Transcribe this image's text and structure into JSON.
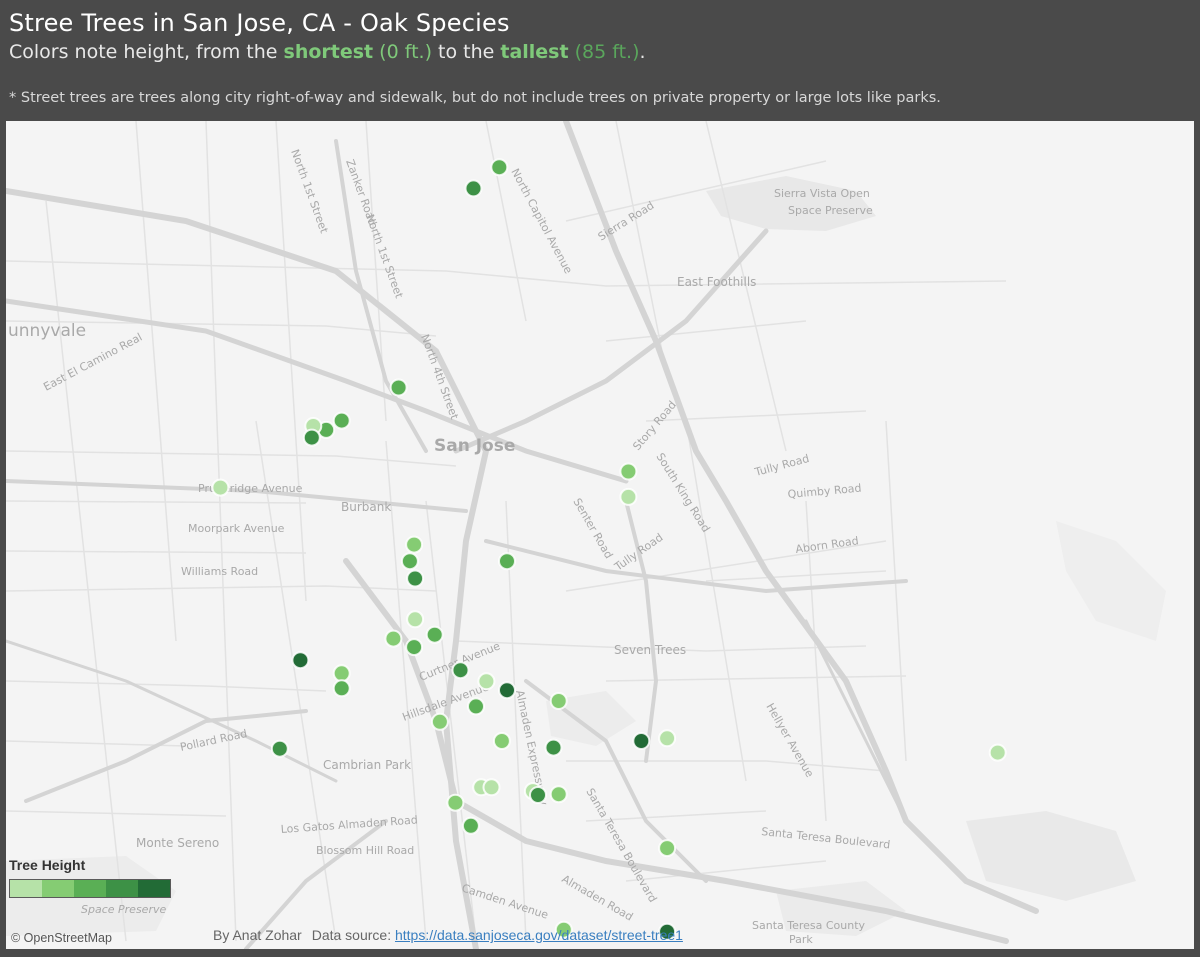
{
  "header": {
    "title": "Stree Trees in San Jose, CA - Oak Species",
    "subtitle": {
      "prefix": "Colors note height, from the ",
      "shortest_word": "shortest",
      "shortest_value": " (0 ft.)",
      "middle": " to the ",
      "tallest_word": "tallest",
      "tallest_value": " (85 ft.)",
      "suffix": "."
    },
    "footnote": "* Street trees are trees along city right-of-way and sidewalk, but do not include trees on private property or large lots like parks."
  },
  "map": {
    "colors": {
      "background": "#f4f4f4",
      "minor_road": "#e2e2e2",
      "major_road": "#d2d2d2",
      "park": "#e9e9e9"
    },
    "labels": {
      "sunnyvale": "unnyvale",
      "east_el_camino_real": "East El Camino Real",
      "san_jose": "San Jose",
      "burbank": "Burbank",
      "pruneridge": "Pruneridge Avenue",
      "moorpark": "Moorpark Avenue",
      "williams": "Williams Road",
      "pollard": "Pollard Road",
      "cambrian_park": "Cambrian Park",
      "monte_sereno": "Monte Sereno",
      "los_gatos_almaden": "Los Gatos Almaden Road",
      "blossom_hill": "Blossom Hill Road",
      "camden": "Camden Avenue",
      "almaden_road": "Almaden Road",
      "almaden_exp": "Almaden Expressway",
      "curtner": "Curtner Avenue",
      "hillsdale": "Hillsdale Avenue",
      "north_1st": "North 1st Street",
      "zanker": "Zanker Road",
      "north_1st_street_2": "North 1st Street",
      "north_4th": "North 4th Street",
      "north_capitol": "North Capitol Avenue",
      "sierra_road": "Sierra Road",
      "sierra_vista": "Sierra Vista Open",
      "space_preserve": "Space Preserve",
      "east_foothills": "East Foothills",
      "story_road": "Story Road",
      "south_king": "South King Road",
      "tully_road_e": "Tully Road",
      "tully_road_w": "Tully Road",
      "quimby": "Quimby Road",
      "aborn": "Aborn Road",
      "senter": "Senter Road",
      "seven_trees": "Seven Trees",
      "hellyer": "Hellyer Avenue",
      "santa_teresa_blvd_w": "Santa Teresa Boulevard",
      "santa_teresa_blvd_e": "Santa Teresa Boulevard",
      "santa_teresa_county": "Santa Teresa County",
      "park_word": "Park",
      "space_preserve_bottom": "Space Preserve"
    },
    "tree_points": [
      {
        "lon": -121.8845,
        "lat": 37.398,
        "height_class": 3
      },
      {
        "lon": -121.8895,
        "lat": 37.3925,
        "height_class": 4
      },
      {
        "lon": -121.904,
        "lat": 37.3408,
        "height_class": 3
      },
      {
        "lon": -121.915,
        "lat": 37.3322,
        "height_class": 3
      },
      {
        "lon": -121.918,
        "lat": 37.3298,
        "height_class": 3
      },
      {
        "lon": -121.9205,
        "lat": 37.3308,
        "height_class": 1
      },
      {
        "lon": -121.9208,
        "lat": 37.3278,
        "height_class": 4
      },
      {
        "lon": -121.9385,
        "lat": 37.3148,
        "height_class": 1
      },
      {
        "lon": -121.8595,
        "lat": 37.319,
        "height_class": 2
      },
      {
        "lon": -121.8595,
        "lat": 37.3124,
        "height_class": 1
      },
      {
        "lon": -121.901,
        "lat": 37.3,
        "height_class": 2
      },
      {
        "lon": -121.9018,
        "lat": 37.2957,
        "height_class": 3
      },
      {
        "lon": -121.9008,
        "lat": 37.2912,
        "height_class": 4
      },
      {
        "lon": -121.883,
        "lat": 37.2957,
        "height_class": 3
      },
      {
        "lon": -121.9008,
        "lat": 37.2806,
        "height_class": 1
      },
      {
        "lon": -121.897,
        "lat": 37.2766,
        "height_class": 3
      },
      {
        "lon": -121.905,
        "lat": 37.2756,
        "height_class": 2
      },
      {
        "lon": -121.901,
        "lat": 37.2734,
        "height_class": 3
      },
      {
        "lon": -121.923,
        "lat": 37.27,
        "height_class": 5
      },
      {
        "lon": -121.915,
        "lat": 37.2666,
        "height_class": 2
      },
      {
        "lon": -121.915,
        "lat": 37.2627,
        "height_class": 3
      },
      {
        "lon": -121.892,
        "lat": 37.2674,
        "height_class": 4
      },
      {
        "lon": -121.887,
        "lat": 37.2645,
        "height_class": 1
      },
      {
        "lon": -121.883,
        "lat": 37.2622,
        "height_class": 5
      },
      {
        "lon": -121.873,
        "lat": 37.2594,
        "height_class": 2
      },
      {
        "lon": -121.889,
        "lat": 37.258,
        "height_class": 3
      },
      {
        "lon": -121.896,
        "lat": 37.254,
        "height_class": 2
      },
      {
        "lon": -121.884,
        "lat": 37.249,
        "height_class": 2
      },
      {
        "lon": -121.874,
        "lat": 37.2473,
        "height_class": 4
      },
      {
        "lon": -121.927,
        "lat": 37.247,
        "height_class": 4
      },
      {
        "lon": -121.857,
        "lat": 37.249,
        "height_class": 5
      },
      {
        "lon": -121.852,
        "lat": 37.2497,
        "height_class": 1
      },
      {
        "lon": -121.788,
        "lat": 37.246,
        "height_class": 1
      },
      {
        "lon": -121.888,
        "lat": 37.237,
        "height_class": 1
      },
      {
        "lon": -121.886,
        "lat": 37.237,
        "height_class": 1
      },
      {
        "lon": -121.878,
        "lat": 37.236,
        "height_class": 1
      },
      {
        "lon": -121.877,
        "lat": 37.235,
        "height_class": 4
      },
      {
        "lon": -121.873,
        "lat": 37.2352,
        "height_class": 2
      },
      {
        "lon": -121.893,
        "lat": 37.233,
        "height_class": 2
      },
      {
        "lon": -121.89,
        "lat": 37.227,
        "height_class": 3
      },
      {
        "lon": -121.852,
        "lat": 37.2212,
        "height_class": 2
      },
      {
        "lon": -121.872,
        "lat": 37.2,
        "height_class": 2
      },
      {
        "lon": -121.852,
        "lat": 37.1995,
        "height_class": 5
      }
    ]
  },
  "legend": {
    "title": "Tree Height",
    "colors": [
      "#b6e2a8",
      "#85cc73",
      "#5aaf55",
      "#3d9146",
      "#226b36"
    ]
  },
  "attribution": {
    "osm": "© OpenStreetMap",
    "author": "By Anat Zohar",
    "source_label": "Data source:",
    "source_url": "https://data.sanjoseca.gov/dataset/street-tree1"
  }
}
